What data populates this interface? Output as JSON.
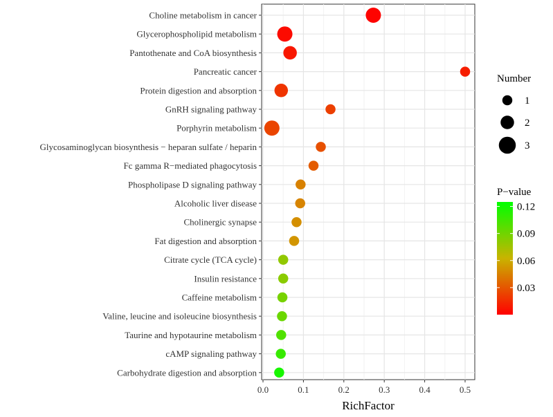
{
  "chart_data": {
    "type": "scatter",
    "title": "",
    "xlabel": "RichFactor",
    "ylabel": "",
    "xlim": [
      0,
      0.52
    ],
    "xticks": [
      0.0,
      0.1,
      0.2,
      0.3,
      0.4,
      0.5
    ],
    "xtick_labels": [
      "0.0",
      "0.1",
      "0.2",
      "0.3",
      "0.4",
      "0.5"
    ],
    "grid": true,
    "points": [
      {
        "pathway": "Choline metabolism in cancer",
        "rich_factor": 0.273,
        "number": 3,
        "p_value": 0.001
      },
      {
        "pathway": "Glycerophospholipid metabolism",
        "rich_factor": 0.054,
        "number": 3,
        "p_value": 0.004
      },
      {
        "pathway": "Pantothenate and CoA biosynthesis",
        "rich_factor": 0.067,
        "number": 2.5,
        "p_value": 0.008
      },
      {
        "pathway": "Pancreatic cancer",
        "rich_factor": 0.5,
        "number": 1.5,
        "p_value": 0.01
      },
      {
        "pathway": "Protein digestion and absorption",
        "rich_factor": 0.045,
        "number": 2.5,
        "p_value": 0.018
      },
      {
        "pathway": "GnRH signaling pathway",
        "rich_factor": 0.167,
        "number": 1.5,
        "p_value": 0.022
      },
      {
        "pathway": "Porphyrin metabolism",
        "rich_factor": 0.022,
        "number": 3,
        "p_value": 0.024
      },
      {
        "pathway": "Glycosaminoglycan biosynthesis − heparan sulfate / heparin",
        "rich_factor": 0.143,
        "number": 1.5,
        "p_value": 0.028
      },
      {
        "pathway": "Fc gamma R−mediated phagocytosis",
        "rich_factor": 0.125,
        "number": 1.5,
        "p_value": 0.032
      },
      {
        "pathway": "Phospholipase D signaling pathway",
        "rich_factor": 0.093,
        "number": 1.5,
        "p_value": 0.045
      },
      {
        "pathway": "Alcoholic liver disease",
        "rich_factor": 0.092,
        "number": 1.5,
        "p_value": 0.046
      },
      {
        "pathway": "Cholinergic synapse",
        "rich_factor": 0.083,
        "number": 1.5,
        "p_value": 0.05
      },
      {
        "pathway": "Fat digestion and absorption",
        "rich_factor": 0.077,
        "number": 1.5,
        "p_value": 0.052
      },
      {
        "pathway": "Citrate cycle (TCA cycle)",
        "rich_factor": 0.05,
        "number": 1.5,
        "p_value": 0.08
      },
      {
        "pathway": "Insulin resistance",
        "rich_factor": 0.05,
        "number": 1.5,
        "p_value": 0.082
      },
      {
        "pathway": "Caffeine metabolism",
        "rich_factor": 0.048,
        "number": 1.5,
        "p_value": 0.088
      },
      {
        "pathway": "Valine, leucine and isoleucine biosynthesis",
        "rich_factor": 0.047,
        "number": 1.5,
        "p_value": 0.092
      },
      {
        "pathway": "Taurine and hypotaurine metabolism",
        "rich_factor": 0.045,
        "number": 1.5,
        "p_value": 0.1
      },
      {
        "pathway": "cAMP signaling pathway",
        "rich_factor": 0.044,
        "number": 1.5,
        "p_value": 0.108
      },
      {
        "pathway": "Carbohydrate digestion and absorption",
        "rich_factor": 0.04,
        "number": 1.5,
        "p_value": 0.118
      }
    ],
    "legend_size": {
      "title": "Number",
      "entries": [
        {
          "label": "1",
          "value": 1
        },
        {
          "label": "2",
          "value": 2
        },
        {
          "label": "3",
          "value": 3
        }
      ]
    },
    "legend_color": {
      "title": "P−value",
      "min": 0.0,
      "max": 0.125,
      "ticks": [
        0.03,
        0.06,
        0.09,
        0.12
      ],
      "tick_labels": [
        "0.03",
        "0.06",
        "0.09",
        "0.12"
      ],
      "low_color": "#ff0000",
      "high_color": "#00ff00"
    },
    "legend_position": "right"
  }
}
